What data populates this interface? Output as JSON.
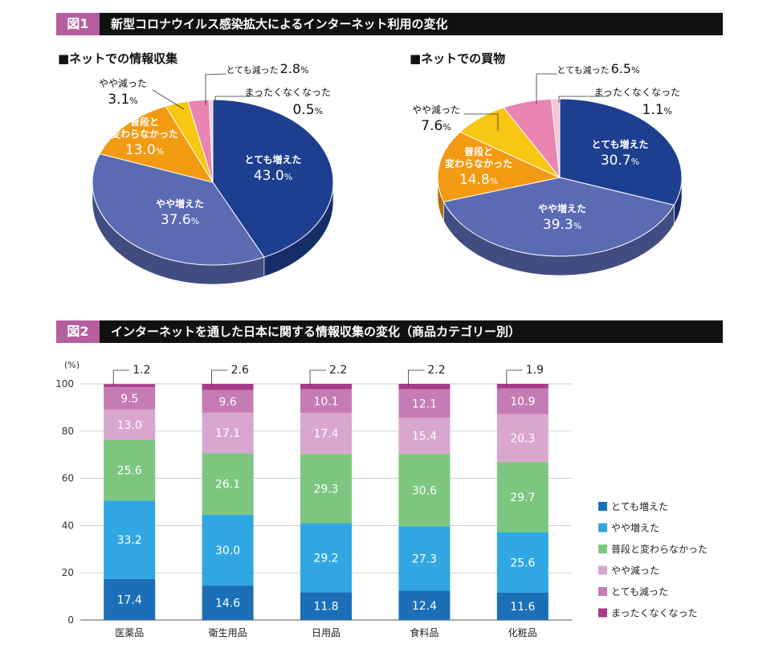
{
  "figure1": {
    "tag": "図1",
    "title": "新型コロナウイルス感染拡大によるインターネット利用の変化"
  },
  "figure2": {
    "tag": "図2",
    "title": "インターネットを通した日本に関する情報収集の変化（商品カテゴリー別）"
  },
  "chart_data": [
    {
      "type": "pie",
      "title": "■ネットでの情報収集",
      "unit": "%",
      "slices": [
        {
          "label": "とても増えた",
          "value": 43.0,
          "color": "#1e3f8f"
        },
        {
          "label": "やや増えた",
          "value": 37.6,
          "color": "#5a6ab3"
        },
        {
          "label": "普段と変わらなかった",
          "value": 13.0,
          "color": "#f39a13"
        },
        {
          "label": "やや減った",
          "value": 3.1,
          "color": "#f7c612"
        },
        {
          "label": "とても減った",
          "value": 2.8,
          "color": "#e985b0"
        },
        {
          "label": "まったくなくなった",
          "value": 0.5,
          "color": "#f4c6d6"
        }
      ]
    },
    {
      "type": "pie",
      "title": "■ネットでの買物",
      "unit": "%",
      "slices": [
        {
          "label": "とても増えた",
          "value": 30.7,
          "color": "#1e3f8f"
        },
        {
          "label": "やや増えた",
          "value": 39.3,
          "color": "#5a6ab3"
        },
        {
          "label": "普段と変わらなかった",
          "value": 14.8,
          "color": "#f39a13"
        },
        {
          "label": "やや減った",
          "value": 7.6,
          "color": "#f7c612"
        },
        {
          "label": "とても減った",
          "value": 6.5,
          "color": "#e985b0"
        },
        {
          "label": "まったくなくなった",
          "value": 1.1,
          "color": "#f4c6d6"
        }
      ]
    },
    {
      "type": "bar",
      "stacked": true,
      "ylabel": "(%)",
      "ylim": [
        0,
        100
      ],
      "yticks": [
        0,
        20,
        40,
        60,
        80,
        100
      ],
      "categories": [
        "医薬品",
        "衛生用品",
        "日用品",
        "食料品",
        "化粧品"
      ],
      "series": [
        {
          "name": "とても増えた",
          "color": "#1a6fb8",
          "values": [
            17.4,
            14.6,
            11.8,
            12.4,
            11.6
          ]
        },
        {
          "name": "やや増えた",
          "color": "#30a7e2",
          "values": [
            33.2,
            30.0,
            29.2,
            27.3,
            25.6
          ]
        },
        {
          "name": "普段と変わらなかった",
          "color": "#7cc680",
          "values": [
            25.6,
            26.1,
            29.3,
            30.6,
            29.7
          ]
        },
        {
          "name": "やや減った",
          "color": "#d9a7cd",
          "values": [
            13.0,
            17.1,
            17.4,
            15.4,
            20.3
          ]
        },
        {
          "name": "とても減った",
          "color": "#c57bb4",
          "values": [
            9.5,
            9.6,
            10.1,
            12.1,
            10.9
          ]
        },
        {
          "name": "まったくなくなった",
          "color": "#a83a8a",
          "values": [
            1.2,
            2.6,
            2.2,
            2.2,
            1.9
          ]
        }
      ],
      "legend_position": "right"
    }
  ]
}
